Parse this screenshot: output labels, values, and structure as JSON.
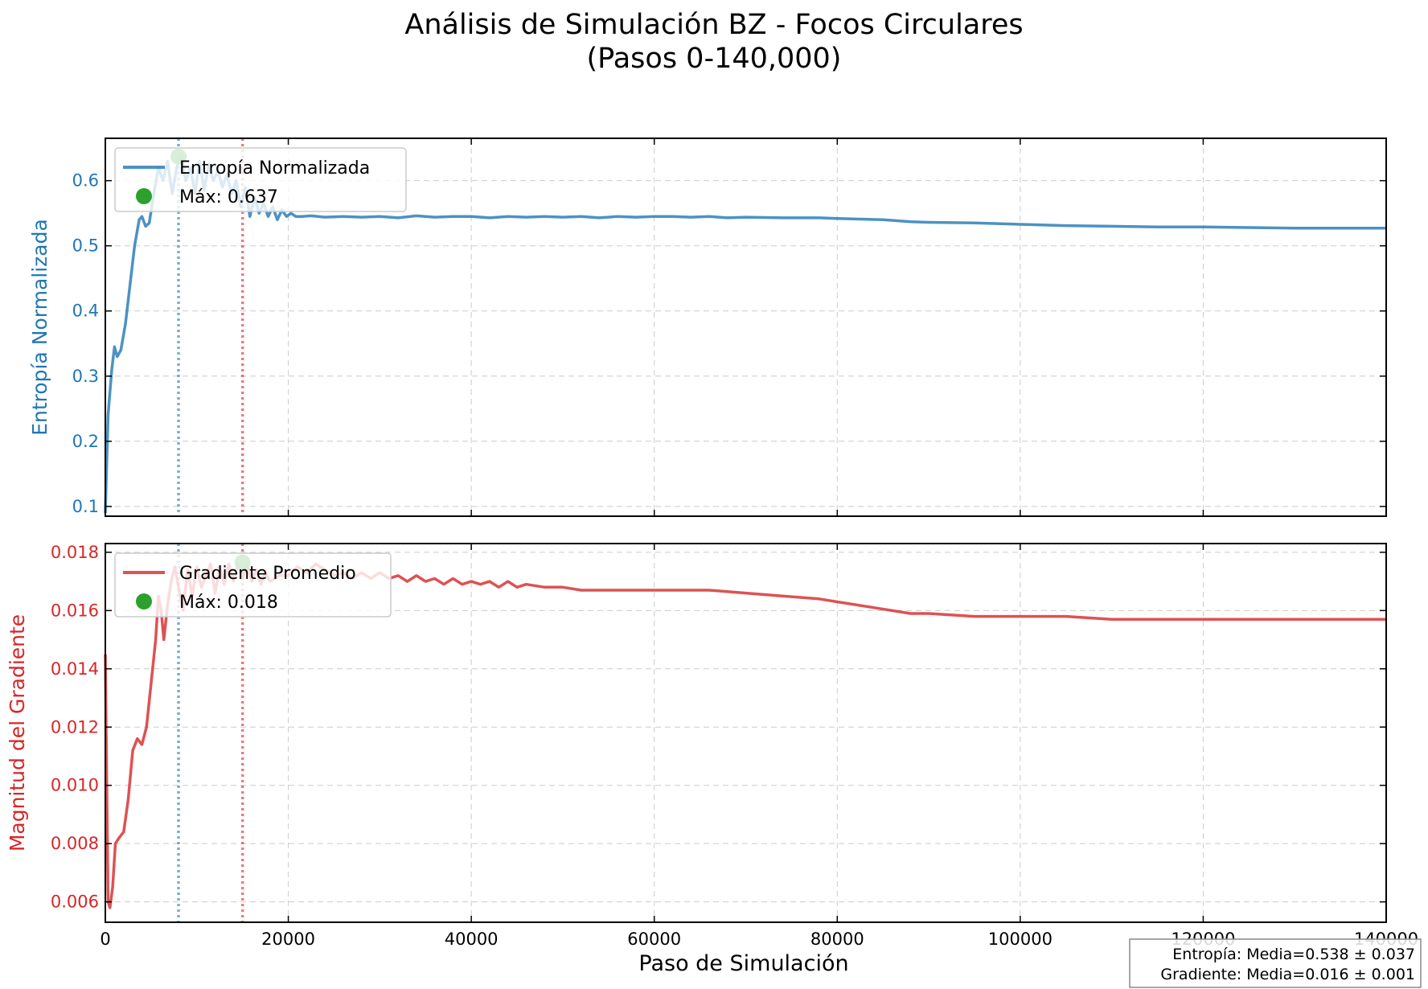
{
  "figure": {
    "title_line1": "Análisis de Simulación BZ - Focos Circulares",
    "title_line2": "(Pasos 0-140,000)",
    "xlabel": "Paso de Simulación",
    "stats_line1": "Entropía: Media=0.538 ± 0.037",
    "stats_line2": "Gradiente: Media=0.016 ± 0.001"
  },
  "colors": {
    "entropy": "#1f77b4",
    "gradient": "#d62728",
    "max_marker": "#2ca02c",
    "grid": "#cccccc"
  },
  "chart_data": [
    {
      "type": "line",
      "ylabel": "Entropía Normalizada",
      "xlim": [
        0,
        140000
      ],
      "ylim": [
        0.085,
        0.665
      ],
      "yticks": [
        0.1,
        0.2,
        0.3,
        0.4,
        0.5,
        0.6
      ],
      "ytick_labels": [
        "0.1",
        "0.2",
        "0.3",
        "0.4",
        "0.5",
        "0.6"
      ],
      "xticks": [
        0,
        20000,
        40000,
        60000,
        80000,
        100000,
        120000,
        140000
      ],
      "xtick_labels": [
        "0",
        "20000",
        "40000",
        "60000",
        "80000",
        "100000",
        "120000",
        "140000"
      ],
      "grid": true,
      "legend_position": "upper left",
      "series": [
        {
          "name": "Entropía Normalizada",
          "color": "#1f77b4",
          "x": [
            0,
            300,
            700,
            1000,
            1300,
            1700,
            2200,
            2700,
            3200,
            3700,
            4000,
            4400,
            4800,
            5300,
            5800,
            6300,
            6800,
            7300,
            7800,
            8300,
            8800,
            9300,
            9800,
            10300,
            10800,
            11300,
            11800,
            12300,
            12800,
            13300,
            13800,
            14300,
            14800,
            15300,
            15800,
            16300,
            16800,
            17300,
            17800,
            18300,
            18800,
            19300,
            19800,
            20300,
            20800,
            21500,
            22500,
            24000,
            26000,
            28000,
            30000,
            32000,
            34000,
            36000,
            38000,
            40000,
            42000,
            44000,
            46000,
            48000,
            50000,
            52000,
            54000,
            56000,
            58000,
            60000,
            62000,
            64000,
            66000,
            68000,
            70000,
            74000,
            78000,
            80000,
            85000,
            88000,
            90000,
            95000,
            100000,
            105000,
            110000,
            115000,
            120000,
            125000,
            130000,
            135000,
            140000
          ],
          "y": [
            0.09,
            0.24,
            0.31,
            0.345,
            0.33,
            0.34,
            0.38,
            0.44,
            0.5,
            0.54,
            0.545,
            0.53,
            0.535,
            0.58,
            0.62,
            0.6,
            0.63,
            0.58,
            0.62,
            0.637,
            0.6,
            0.62,
            0.58,
            0.63,
            0.585,
            0.625,
            0.6,
            0.615,
            0.59,
            0.61,
            0.58,
            0.6,
            0.56,
            0.59,
            0.545,
            0.575,
            0.55,
            0.565,
            0.545,
            0.56,
            0.54,
            0.555,
            0.545,
            0.55,
            0.545,
            0.545,
            0.546,
            0.544,
            0.545,
            0.544,
            0.545,
            0.543,
            0.546,
            0.544,
            0.545,
            0.545,
            0.543,
            0.545,
            0.544,
            0.545,
            0.544,
            0.545,
            0.543,
            0.545,
            0.544,
            0.545,
            0.545,
            0.544,
            0.545,
            0.543,
            0.544,
            0.543,
            0.543,
            0.542,
            0.54,
            0.537,
            0.536,
            0.535,
            0.533,
            0.531,
            0.53,
            0.529,
            0.529,
            0.528,
            0.527,
            0.527,
            0.527
          ]
        }
      ],
      "max_label": "Máx: 0.637",
      "max_point": {
        "x": 8000,
        "y": 0.637
      },
      "vlines": [
        {
          "x": 8000,
          "color": "#1f77b4"
        },
        {
          "x": 15000,
          "color": "#d62728"
        }
      ]
    },
    {
      "type": "line",
      "ylabel": "Magnitud del Gradiente",
      "xlim": [
        0,
        140000
      ],
      "ylim": [
        0.0053,
        0.0183
      ],
      "yticks": [
        0.006,
        0.008,
        0.01,
        0.012,
        0.014,
        0.016,
        0.018
      ],
      "ytick_labels": [
        "0.006",
        "0.008",
        "0.010",
        "0.012",
        "0.014",
        "0.016",
        "0.018"
      ],
      "xticks": [
        0,
        20000,
        40000,
        60000,
        80000,
        100000,
        120000,
        140000
      ],
      "xtick_labels": [
        "0",
        "20000",
        "40000",
        "60000",
        "80000",
        "100000",
        "120000",
        "140000"
      ],
      "grid": true,
      "legend_position": "upper left",
      "series": [
        {
          "name": "Gradiente Promedio",
          "color": "#d62728",
          "x": [
            0,
            300,
            500,
            800,
            1100,
            1500,
            2000,
            2500,
            3000,
            3500,
            4000,
            4500,
            5000,
            5500,
            5800,
            6100,
            6400,
            6800,
            7200,
            7600,
            8000,
            8500,
            9000,
            9500,
            10000,
            10500,
            11000,
            11500,
            12000,
            12500,
            13000,
            13500,
            14000,
            14500,
            15000,
            15500,
            16000,
            16500,
            17000,
            17500,
            18000,
            19000,
            20000,
            21000,
            22000,
            23000,
            24000,
            25000,
            26000,
            27000,
            28000,
            29000,
            30000,
            31000,
            32000,
            33000,
            34000,
            35000,
            36000,
            37000,
            38000,
            39000,
            40000,
            41000,
            42000,
            43000,
            44000,
            45000,
            46000,
            48000,
            50000,
            52000,
            55000,
            58000,
            60000,
            63000,
            66000,
            70000,
            74000,
            78000,
            80000,
            84000,
            88000,
            90000,
            95000,
            100000,
            105000,
            110000,
            115000,
            120000,
            125000,
            130000,
            135000,
            140000
          ],
          "y": [
            0.0145,
            0.006,
            0.0058,
            0.0065,
            0.008,
            0.0082,
            0.0084,
            0.0095,
            0.0112,
            0.0116,
            0.0114,
            0.012,
            0.0135,
            0.015,
            0.0165,
            0.016,
            0.015,
            0.0162,
            0.017,
            0.0175,
            0.0168,
            0.016,
            0.0174,
            0.0165,
            0.0175,
            0.0168,
            0.0172,
            0.0176,
            0.0166,
            0.0175,
            0.0169,
            0.0176,
            0.017,
            0.0176,
            0.0171,
            0.0176,
            0.017,
            0.0174,
            0.0169,
            0.0173,
            0.017,
            0.0172,
            0.0172,
            0.0175,
            0.0173,
            0.0176,
            0.0174,
            0.0172,
            0.0173,
            0.0171,
            0.0173,
            0.0171,
            0.0173,
            0.0171,
            0.0172,
            0.017,
            0.0172,
            0.017,
            0.0171,
            0.0169,
            0.0171,
            0.0169,
            0.017,
            0.0169,
            0.017,
            0.0168,
            0.017,
            0.0168,
            0.0169,
            0.0168,
            0.0168,
            0.0167,
            0.0167,
            0.0167,
            0.0167,
            0.0167,
            0.0167,
            0.0166,
            0.0165,
            0.0164,
            0.0163,
            0.0161,
            0.0159,
            0.0159,
            0.0158,
            0.0158,
            0.0158,
            0.0157,
            0.0157,
            0.0157,
            0.0157,
            0.0157,
            0.0157,
            0.0157
          ]
        }
      ],
      "max_label": "Máx: 0.018",
      "max_point": {
        "x": 15000,
        "y": 0.01765
      },
      "vlines": [
        {
          "x": 8000,
          "color": "#1f77b4"
        },
        {
          "x": 15000,
          "color": "#d62728"
        }
      ]
    }
  ]
}
